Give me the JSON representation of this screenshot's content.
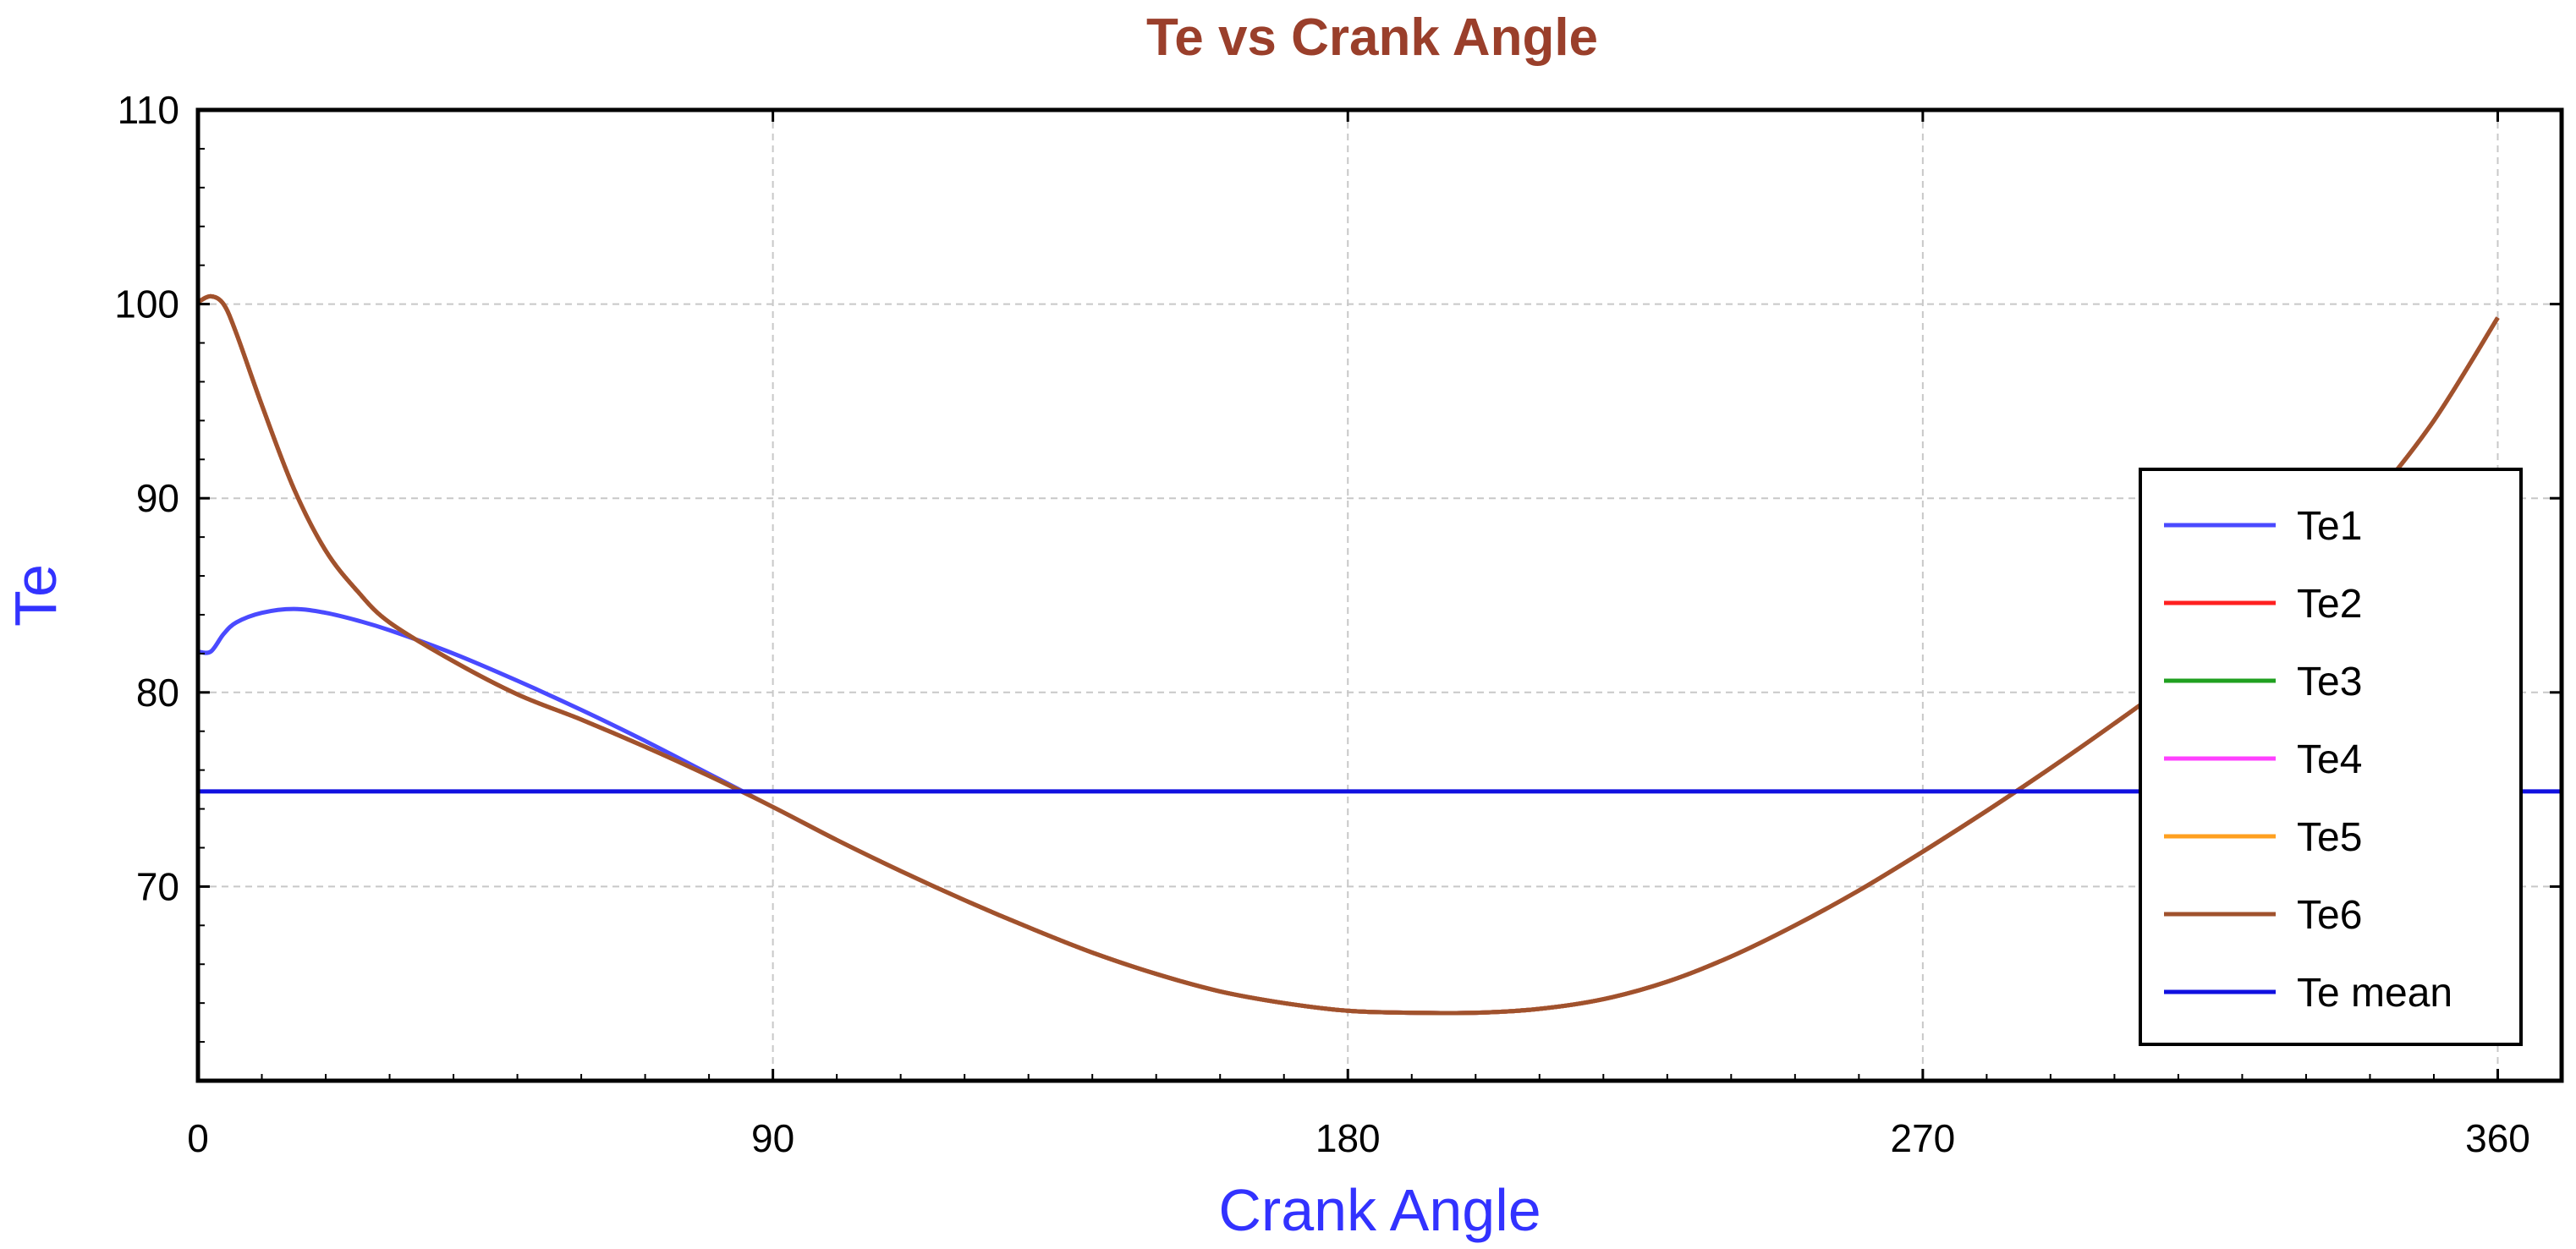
{
  "chart_data": {
    "type": "line",
    "title": "Te vs Crank Angle",
    "xlabel": "Crank Angle",
    "ylabel": "Te",
    "xlim": [
      0,
      370
    ],
    "ylim": [
      60,
      110
    ],
    "xticks": [
      0,
      90,
      180,
      270,
      360
    ],
    "yticks": [
      70,
      80,
      90,
      100,
      110
    ],
    "grid": true,
    "legend_position": "right",
    "colors": {
      "title": "#9a3f2b",
      "xlabel": "#3232ff",
      "ylabel": "#3232ff",
      "grid": "#c8c8c8",
      "axis": "#000000"
    },
    "x": [
      0,
      2,
      4,
      6,
      10,
      15,
      20,
      25,
      30,
      40,
      50,
      60,
      70,
      80,
      90,
      100,
      110,
      120,
      130,
      140,
      150,
      160,
      170,
      180,
      190,
      200,
      210,
      220,
      230,
      240,
      250,
      260,
      270,
      280,
      290,
      300,
      310,
      320,
      330,
      340,
      350,
      360
    ],
    "series": [
      {
        "name": "Te1",
        "color": "#4a4aff",
        "values": [
          82.1,
          82.1,
          83.0,
          83.6,
          84.1,
          84.3,
          84.1,
          83.7,
          83.2,
          82.0,
          80.6,
          79.1,
          77.5,
          75.8,
          74.1,
          72.4,
          70.8,
          69.3,
          67.9,
          66.6,
          65.5,
          64.6,
          64.0,
          63.6,
          63.5,
          63.5,
          63.7,
          64.2,
          65.1,
          66.4,
          68.0,
          69.8,
          71.8,
          73.9,
          76.1,
          78.4,
          80.8,
          83.5,
          86.4,
          89.8,
          94.0,
          99.3
        ]
      },
      {
        "name": "Te2",
        "color": "#ff2020",
        "values": [
          100.1,
          100.4,
          100.0,
          98.5,
          94.8,
          90.5,
          87.3,
          85.2,
          83.6,
          81.6,
          79.9,
          78.6,
          77.2,
          75.7,
          74.1,
          72.4,
          70.8,
          69.3,
          67.9,
          66.6,
          65.5,
          64.6,
          64.0,
          63.6,
          63.5,
          63.5,
          63.7,
          64.2,
          65.1,
          66.4,
          68.0,
          69.8,
          71.8,
          73.9,
          76.1,
          78.4,
          80.8,
          83.5,
          86.4,
          89.8,
          94.0,
          99.3
        ]
      },
      {
        "name": "Te3",
        "color": "#20a020",
        "values": [
          100.1,
          100.4,
          100.0,
          98.5,
          94.8,
          90.5,
          87.3,
          85.2,
          83.6,
          81.6,
          79.9,
          78.6,
          77.2,
          75.7,
          74.1,
          72.4,
          70.8,
          69.3,
          67.9,
          66.6,
          65.5,
          64.6,
          64.0,
          63.6,
          63.5,
          63.5,
          63.7,
          64.2,
          65.1,
          66.4,
          68.0,
          69.8,
          71.8,
          73.9,
          76.1,
          78.4,
          80.8,
          83.5,
          86.4,
          89.8,
          94.0,
          99.3
        ]
      },
      {
        "name": "Te4",
        "color": "#ff40ff",
        "values": [
          100.1,
          100.4,
          100.0,
          98.5,
          94.8,
          90.5,
          87.3,
          85.2,
          83.6,
          81.6,
          79.9,
          78.6,
          77.2,
          75.7,
          74.1,
          72.4,
          70.8,
          69.3,
          67.9,
          66.6,
          65.5,
          64.6,
          64.0,
          63.6,
          63.5,
          63.5,
          63.7,
          64.2,
          65.1,
          66.4,
          68.0,
          69.8,
          71.8,
          73.9,
          76.1,
          78.4,
          80.8,
          83.5,
          86.4,
          89.8,
          94.0,
          99.3
        ]
      },
      {
        "name": "Te5",
        "color": "#ffa020",
        "values": [
          100.1,
          100.4,
          100.0,
          98.5,
          94.8,
          90.5,
          87.3,
          85.2,
          83.6,
          81.6,
          79.9,
          78.6,
          77.2,
          75.7,
          74.1,
          72.4,
          70.8,
          69.3,
          67.9,
          66.6,
          65.5,
          64.6,
          64.0,
          63.6,
          63.5,
          63.5,
          63.7,
          64.2,
          65.1,
          66.4,
          68.0,
          69.8,
          71.8,
          73.9,
          76.1,
          78.4,
          80.8,
          83.5,
          86.4,
          89.8,
          94.0,
          99.3
        ]
      },
      {
        "name": "Te6",
        "color": "#a0522d",
        "values": [
          100.1,
          100.4,
          100.0,
          98.5,
          94.8,
          90.5,
          87.3,
          85.2,
          83.6,
          81.6,
          79.9,
          78.6,
          77.2,
          75.7,
          74.1,
          72.4,
          70.8,
          69.3,
          67.9,
          66.6,
          65.5,
          64.6,
          64.0,
          63.6,
          63.5,
          63.5,
          63.7,
          64.2,
          65.1,
          66.4,
          68.0,
          69.8,
          71.8,
          73.9,
          76.1,
          78.4,
          80.8,
          83.5,
          86.4,
          89.8,
          94.0,
          99.3
        ]
      },
      {
        "name": "Te mean",
        "color": "#1010e0",
        "values": [
          74.9,
          74.9,
          74.9,
          74.9,
          74.9,
          74.9,
          74.9,
          74.9,
          74.9,
          74.9,
          74.9,
          74.9,
          74.9,
          74.9,
          74.9,
          74.9,
          74.9,
          74.9,
          74.9,
          74.9,
          74.9,
          74.9,
          74.9,
          74.9,
          74.9,
          74.9,
          74.9,
          74.9,
          74.9,
          74.9,
          74.9,
          74.9,
          74.9,
          74.9,
          74.9,
          74.9,
          74.9,
          74.9,
          74.9,
          74.9,
          74.9,
          74.9
        ]
      }
    ]
  }
}
